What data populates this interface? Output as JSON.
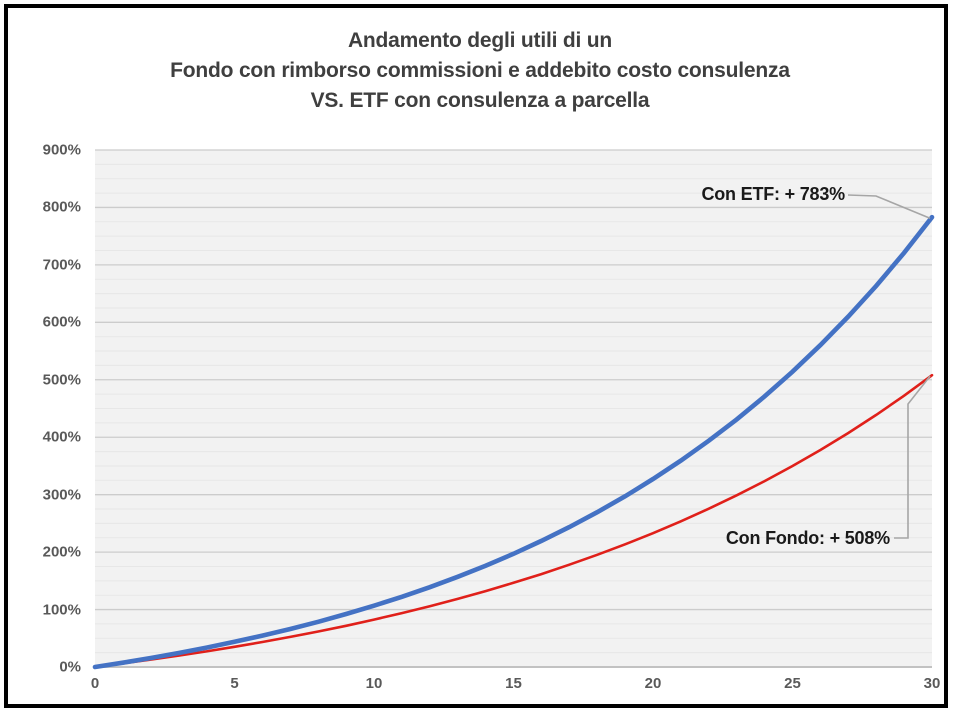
{
  "title": {
    "line1": "Andamento degli utili di un",
    "line2": "Fondo con rimborso commissioni e addebito costo consulenza",
    "line3": "VS. ETF con consulenza a parcella"
  },
  "chart_data": {
    "type": "line",
    "x": [
      0,
      1,
      2,
      3,
      4,
      5,
      6,
      7,
      8,
      9,
      10,
      11,
      12,
      13,
      14,
      15,
      16,
      17,
      18,
      19,
      20,
      21,
      22,
      23,
      24,
      25,
      26,
      27,
      28,
      29,
      30
    ],
    "xlim": [
      0,
      30
    ],
    "ylim": [
      0,
      900
    ],
    "x_ticks": [
      0,
      5,
      10,
      15,
      20,
      25,
      30
    ],
    "y_ticks": [
      {
        "value": 0,
        "label": "0%"
      },
      {
        "value": 100,
        "label": "100%"
      },
      {
        "value": 200,
        "label": "200%"
      },
      {
        "value": 300,
        "label": "300%"
      },
      {
        "value": 400,
        "label": "400%"
      },
      {
        "value": 500,
        "label": "500%"
      },
      {
        "value": 600,
        "label": "600%"
      },
      {
        "value": 700,
        "label": "700%"
      },
      {
        "value": 800,
        "label": "800%"
      },
      {
        "value": 900,
        "label": "900%"
      }
    ],
    "grid": {
      "horizontal_major_step": 100,
      "horizontal_minor_step": 25,
      "vertical": false
    },
    "legend": "none (end-of-line callout labels instead)",
    "series": [
      {
        "name": "Con ETF",
        "color": "#4472c4",
        "final_value_pct": 783,
        "values": [
          0,
          7.5,
          15.6,
          24.3,
          33.7,
          43.8,
          54.6,
          66.2,
          78.7,
          92.2,
          106.7,
          122.2,
          139.0,
          157.0,
          176.3,
          197.1,
          219.5,
          243.6,
          269.4,
          297.2,
          327.2,
          359.3,
          393.9,
          431.1,
          471.1,
          514.1,
          560.3,
          610.1,
          663.5,
          721.0,
          783.0
        ]
      },
      {
        "name": "Con Fondo",
        "color": "#e0201a",
        "final_value_pct": 508,
        "values": [
          0,
          6.2,
          12.8,
          19.8,
          27.2,
          35.1,
          43.5,
          52.4,
          61.8,
          71.8,
          82.5,
          93.8,
          105.8,
          118.6,
          132.1,
          146.5,
          161.8,
          178.0,
          195.3,
          213.6,
          233.0,
          253.7,
          275.6,
          298.9,
          323.6,
          349.9,
          377.8,
          407.4,
          438.9,
          472.3,
          508.0
        ]
      }
    ],
    "annotations": [
      {
        "text": "Con ETF: + 783%",
        "target_series": "Con ETF"
      },
      {
        "text": "Con Fondo: + 508%",
        "target_series": "Con Fondo"
      }
    ]
  },
  "colors": {
    "plot_background": "#f2f2f2",
    "grid_major": "#cccccc",
    "grid_minor": "#e7e7e7",
    "axis_line": "#c2c2c2",
    "leader_line": "#a6a6a6",
    "title_text": "#3f3f3f",
    "tick_text": "#595959",
    "annotation_text": "#1a1a1a",
    "etf_line": "#4472c4",
    "fondo_line": "#e0201a",
    "frame_border": "#000000"
  }
}
